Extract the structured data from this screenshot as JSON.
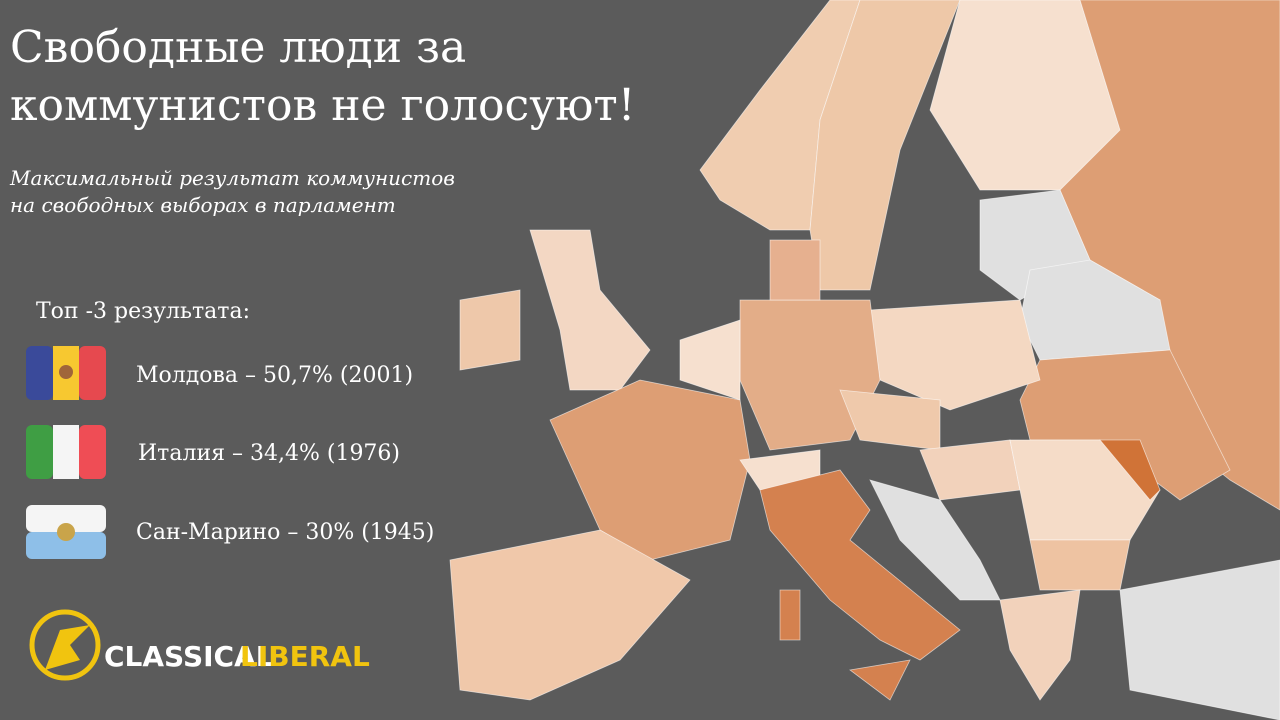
{
  "title": [
    "Свободные люди за",
    "коммунистов не голосуют!"
  ],
  "subtitle": [
    "Максимальный результат коммунистов",
    "на свободных выборах в парламент"
  ],
  "top_heading": "Топ -3 результата:",
  "top": [
    "Молдова – 50,7% (2001)",
    "Италия – 34,4% (1976)",
    "Сан-Марино – 30% (1945)"
  ],
  "logo": {
    "part1": "CLASSICAL",
    "part2": "LIBERAL"
  }
}
